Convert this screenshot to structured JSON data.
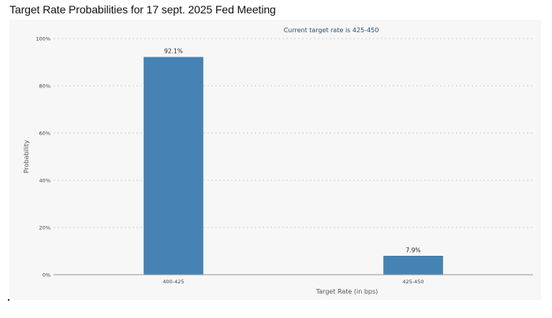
{
  "page": {
    "title": "Target Rate Probabilities for 17 sept. 2025 Fed Meeting"
  },
  "chart_data": {
    "type": "bar",
    "title": "Target Rate Probabilities for 17 sept. 2025 Fed Meeting",
    "subtitle": "Current target rate is 425-450",
    "xlabel": "Target Rate (in bps)",
    "ylabel": "Probability",
    "categories": [
      "400-425",
      "425-450"
    ],
    "values": [
      92.1,
      7.9
    ],
    "data_labels": [
      "92.1%",
      "7.9%"
    ],
    "ylim": [
      0,
      100
    ],
    "y_ticks": [
      0,
      20,
      40,
      60,
      80,
      100
    ],
    "y_tick_labels": [
      "0%",
      "20%",
      "40%",
      "60%",
      "80%",
      "100%"
    ],
    "grid": true,
    "legend": "none",
    "colors": {
      "bar": "#4682b4",
      "bar_edge": "#3b6f9c",
      "grid": "#cfcfcf",
      "axis": "#999999",
      "subtitle": "#2d4b73",
      "panel_bg": "#f7f7f7"
    }
  }
}
